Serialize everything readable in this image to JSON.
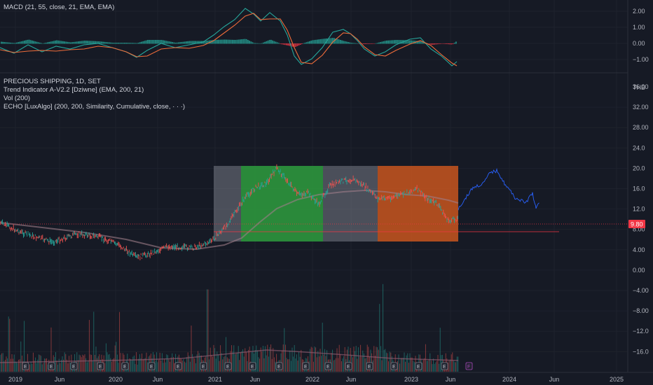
{
  "macd_pane": {
    "title": "MACD (21, 55, close, 21, EMA, EMA)",
    "axis_ticks": [
      "2.00",
      "1.00",
      "0.00",
      "−1.00"
    ]
  },
  "main_pane": {
    "symbol_line": "PRECIOUS SHIPPING, 1D, SET",
    "indicator_trend": "Trend Indicator A-V2.2 [Dziwne] (EMA, 200, 21)",
    "indicator_vol": "Vol (200)",
    "indicator_echo": "ECHO [LuxAlgo] (200, 200, Similarity, Cumulative, close, · · ·)",
    "currency": "THB",
    "axis_ticks": [
      "36.00",
      "32.00",
      "28.00",
      "24.0",
      "20.0",
      "16.0",
      "12.0",
      "8.00",
      "4.00",
      "0.00",
      "−4.00",
      "−8.00",
      "−12.0",
      "−16.0"
    ],
    "last_price": "9.80"
  },
  "time_axis": [
    "2019",
    "Jun",
    "2020",
    "Jun",
    "2021",
    "Jun",
    "2022",
    "Jun",
    "2023",
    "Jun",
    "2024",
    "Jun",
    "2025"
  ],
  "events": {
    "earnings": "E",
    "future": "F"
  },
  "colors": {
    "background": "#161a25",
    "gray_zone": "#787b86",
    "green_zone": "#2e9e3e",
    "orange_zone": "#c8561f",
    "macd_line": "#26a69a",
    "signal_line": "#ef6c3a",
    "hist_pos": "#26a69a",
    "hist_neg": "#f23645",
    "last_price": "#f23645",
    "forecast": "#2962ff"
  }
}
